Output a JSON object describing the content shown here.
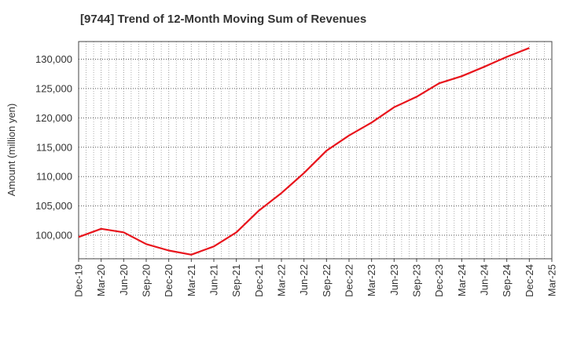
{
  "title": "[9744]  Trend of 12-Month Moving Sum of Revenues",
  "colors": {
    "line": "#e8141c",
    "grid": "#999999",
    "frame": "#444444",
    "text": "#333333"
  },
  "chart_data": {
    "type": "line",
    "title": "[9744]  Trend of 12-Month Moving Sum of Revenues",
    "xlabel": "",
    "ylabel": "Amount (million yen)",
    "grid": true,
    "legend": "none",
    "ylim": [
      96000,
      133000
    ],
    "yticks": [
      100000,
      105000,
      110000,
      115000,
      120000,
      125000,
      130000
    ],
    "ytick_labels": [
      "100,000",
      "105,000",
      "110,000",
      "115,000",
      "120,000",
      "125,000",
      "130,000"
    ],
    "xtick_labels": [
      "Dec-19",
      "Mar-20",
      "Jun-20",
      "Sep-20",
      "Dec-20",
      "Mar-21",
      "Jun-21",
      "Sep-21",
      "Dec-21",
      "Mar-22",
      "Jun-22",
      "Sep-22",
      "Dec-22",
      "Mar-23",
      "Jun-23",
      "Sep-23",
      "Dec-23",
      "Mar-24",
      "Jun-24",
      "Sep-24",
      "Dec-24",
      "Mar-25"
    ],
    "series": [
      {
        "x": [
          "Dec-19",
          "Mar-20",
          "Jun-20",
          "Sep-20",
          "Dec-20",
          "Mar-21",
          "Jun-21",
          "Sep-21",
          "Dec-21",
          "Mar-22",
          "Jun-22",
          "Sep-22",
          "Dec-22",
          "Mar-23",
          "Jun-23",
          "Sep-23",
          "Dec-23",
          "Mar-24",
          "Jun-24",
          "Sep-24",
          "Dec-24"
        ],
        "values": [
          99700,
          101100,
          100500,
          98500,
          97400,
          96700,
          98100,
          100500,
          104200,
          107200,
          110600,
          114400,
          117000,
          119200,
          121800,
          123600,
          125900,
          127100,
          128700,
          130400,
          131900
        ]
      }
    ]
  }
}
